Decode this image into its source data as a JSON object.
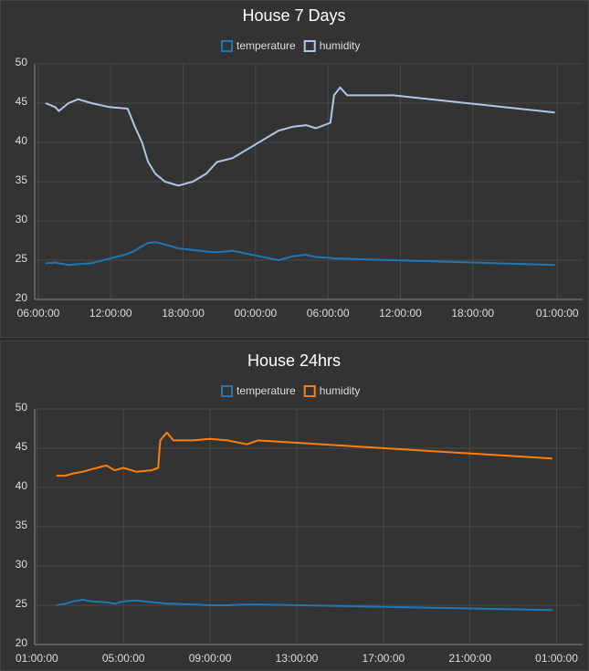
{
  "chart_data": [
    {
      "type": "line",
      "title": "House 7 Days",
      "x": [
        6.6,
        7.4,
        7.7,
        8.5,
        9.3,
        10.4,
        11.9,
        13.4,
        14.0,
        14.6,
        15.1,
        15.7,
        16.5,
        17.6,
        18.8,
        19.9,
        20.8,
        22.1,
        25.9,
        27.1,
        28.2,
        29.0,
        30.2,
        30.5,
        31.0,
        31.6,
        33.1,
        35.4,
        48.8
      ],
      "series": [
        {
          "name": "temperature",
          "color": "#1f77b4",
          "values": [
            24.6,
            24.7,
            24.6,
            24.4,
            24.5,
            24.6,
            25.2,
            25.8,
            26.2,
            26.8,
            27.2,
            27.3,
            27,
            26.5,
            26.3,
            26.1,
            26,
            26.2,
            25,
            25.5,
            25.7,
            25.4,
            25.3,
            25.2,
            25.2,
            25.2,
            25.1,
            25,
            24.4
          ]
        },
        {
          "name": "humidity",
          "color": "#aec7e8",
          "values": [
            45,
            44.5,
            44,
            45,
            45.5,
            45,
            44.5,
            44.3,
            42,
            40,
            37.5,
            36,
            35,
            34.5,
            35,
            36,
            37.5,
            38,
            41.5,
            42,
            42.2,
            41.8,
            42.5,
            46,
            47,
            46,
            46,
            46,
            43.8
          ]
        }
      ],
      "xlim": [
        5.7,
        51.1
      ],
      "xticks": [
        {
          "value": 6,
          "label": "06:00:00"
        },
        {
          "value": 12,
          "label": "12:00:00"
        },
        {
          "value": 18,
          "label": "18:00:00"
        },
        {
          "value": 24,
          "label": "00:00:00"
        },
        {
          "value": 30,
          "label": "06:00:00"
        },
        {
          "value": 36,
          "label": "12:00:00"
        },
        {
          "value": 42,
          "label": "18:00:00"
        },
        {
          "value": 49,
          "label": "01:00:00"
        }
      ],
      "ylim": [
        20,
        50
      ],
      "yticks": [
        20,
        25,
        30,
        35,
        40,
        45,
        50
      ],
      "grid": true
    },
    {
      "type": "line",
      "title": "House 24hrs",
      "x": [
        1.9,
        2.3,
        2.7,
        3.1,
        3.5,
        4.2,
        4.6,
        5.0,
        5.6,
        6.3,
        6.6,
        6.7,
        7.0,
        7.3,
        8.2,
        9.0,
        9.8,
        10.7,
        11.2,
        24.8
      ],
      "series": [
        {
          "name": "temperature",
          "color": "#1f77b4",
          "values": [
            25,
            25.2,
            25.5,
            25.7,
            25.5,
            25.4,
            25.2,
            25.5,
            25.6,
            25.4,
            25.3,
            25.3,
            25.2,
            25.2,
            25.1,
            25,
            25,
            25.1,
            25.1,
            24.4
          ]
        },
        {
          "name": "humidity",
          "color": "#ff7f0e",
          "values": [
            41.5,
            41.5,
            41.8,
            42,
            42.3,
            42.8,
            42.2,
            42.5,
            42,
            42.2,
            42.5,
            46,
            47,
            46,
            46,
            46.2,
            46,
            45.5,
            46,
            43.7
          ]
        }
      ],
      "xlim": [
        0.9,
        26.2
      ],
      "xticks": [
        {
          "value": 1,
          "label": "01:00:00"
        },
        {
          "value": 5,
          "label": "05:00:00"
        },
        {
          "value": 9,
          "label": "09:00:00"
        },
        {
          "value": 13,
          "label": "13:00:00"
        },
        {
          "value": 17,
          "label": "17:00:00"
        },
        {
          "value": 21,
          "label": "21:00:00"
        },
        {
          "value": 25,
          "label": "01:00:00"
        }
      ],
      "ylim": [
        20,
        50
      ],
      "yticks": [
        20,
        25,
        30,
        35,
        40,
        45,
        50
      ],
      "grid": true
    }
  ]
}
